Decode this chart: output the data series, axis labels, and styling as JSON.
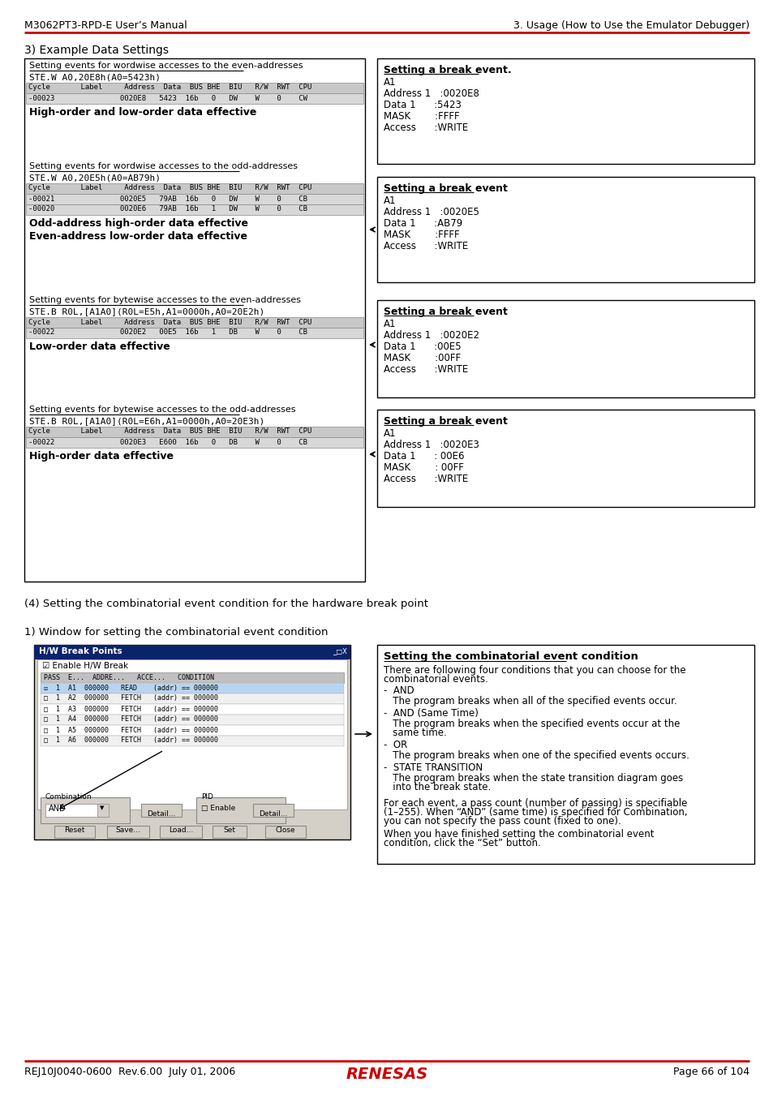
{
  "header_left": "M3062PT3-RPD-E User’s Manual",
  "header_right": "3. Usage (How to Use the Emulator Debugger)",
  "footer_left": "REJ10J0040-0600  Rev.6.00  July 01, 2006",
  "footer_page": "Page 66 of 104",
  "red_color": "#CC0000",
  "section_title": "3) Example Data Settings",
  "section4_title": "(4) Setting the combinatorial event condition for the hardware break point",
  "section4_sub": "1) Window for setting the combinatorial event condition",
  "box1_title": "Setting events for wordwise accesses to the even-addresses",
  "box1_code": "STE.W A0,20E8h(A0=5423h)",
  "box1_hdr": "Cycle       Label     Address  Data  BUS BHE  BIU   R/W  RWT  CPU",
  "box1_r1": "-00023               0020E8   5423  16b   0   DW    W    0    CW",
  "box1_txt": "High-order and low-order data effective",
  "box2_title": "Setting events for wordwise accesses to the odd-addresses",
  "box2_code": "STE.W A0,20E5h(A0=AB79h)",
  "box2_hdr": "Cycle       Label     Address  Data  BUS BHE  BIU   R/W  RWT  CPU",
  "box2_r1": "-00021               0020E5   79AB  16b   0   DW    W    0    CB",
  "box2_r2": "-00020               0020E6   79AB  16b   1   DW    W    0    CB",
  "box2_t1": "Odd-address high-order data effective",
  "box2_t2": "Even-address low-order data effective",
  "box3_title": "Setting events for bytewise accesses to the even-addresses",
  "box3_code": "STE.B R0L,[A1A0](R0L=E5h,A1=0000h,A0=20E2h)",
  "box3_hdr": "Cycle       Label     Address  Data  BUS BHE  BIU   R/W  RWT  CPU",
  "box3_r1": "-00022               0020E2   00E5  16b   1   DB    W    0    CB",
  "box3_txt": "Low-order data effective",
  "box4_title": "Setting events for bytewise accesses to the odd-addresses",
  "box4_code": "STE.B R0L,[A1A0](R0L=E6h,A1=0000h,A0=20E3h)",
  "box4_hdr": "Cycle       Label     Address  Data  BUS BHE  BIU   R/W  RWT  CPU",
  "box4_r1": "-00022               0020E3   E600  16b   0   DB    W    0    CB",
  "box4_txt": "High-order data effective",
  "rb1_title": "Setting a break event.",
  "rb1_lines": [
    "A1",
    "Address 1   :0020E8",
    "Data 1      :5423",
    "MASK        :FFFF",
    "Access      :WRITE"
  ],
  "rb2_title": "Setting a break event",
  "rb2_lines": [
    "A1",
    "Address 1   :0020E5",
    "Data 1      :AB79",
    "MASK        :FFFF",
    "Access      :WRITE"
  ],
  "rb3_title": "Setting a break event",
  "rb3_lines": [
    "A1",
    "Address 1   :0020E2",
    "Data 1      :00E5",
    "MASK        :00FF",
    "Access      :WRITE"
  ],
  "rb4_title": "Setting a break event",
  "rb4_lines": [
    "A1",
    "Address 1   :0020E3",
    "Data 1      : 00E6",
    "MASK        : 00FF",
    "Access      :WRITE"
  ],
  "combo_title": "Setting the combinatorial event condition",
  "combo_p1a": "There are following four conditions that you can choose for the",
  "combo_p1b": "combinatorial events.",
  "combo_and": "-  AND",
  "combo_and_d": "   The program breaks when all of the specified events occur.",
  "combo_andsame": "-  AND (Same Time)",
  "combo_andsame_d1": "   The program breaks when the specified events occur at the",
  "combo_andsame_d2": "   same time.",
  "combo_or": "-  OR",
  "combo_or_d": "   The program breaks when one of the specified events occurs.",
  "combo_state": "-  STATE TRANSITION",
  "combo_state_d1": "   The program breaks when the state transition diagram goes",
  "combo_state_d2": "   into the break state.",
  "combo_f1": "For each event, a pass count (number of passing) is specifiable",
  "combo_f2": "(1–255). When “AND” (same time) is specified for Combination,",
  "combo_f3": "you can not specify the pass count (fixed to one).",
  "combo_f4": "When you have finished setting the combinatorial event",
  "combo_f5": "condition, click the “Set” button.",
  "dlg_rows": [
    "  ☑  1  A1  000000  READ    (addr) == 000000",
    "  □  1  A2  000000  FETCH   (addr) == 000000",
    "  □  1  A3  000000  FETCH   (addr) == 000000",
    "  □  1  A4  000000  FETCH   (addr) == 000000",
    "  □  1  A5  000000  FETCH   (addr) == 000000",
    "  □  1  A6  000000  FETCH   (addr) == 000000"
  ]
}
